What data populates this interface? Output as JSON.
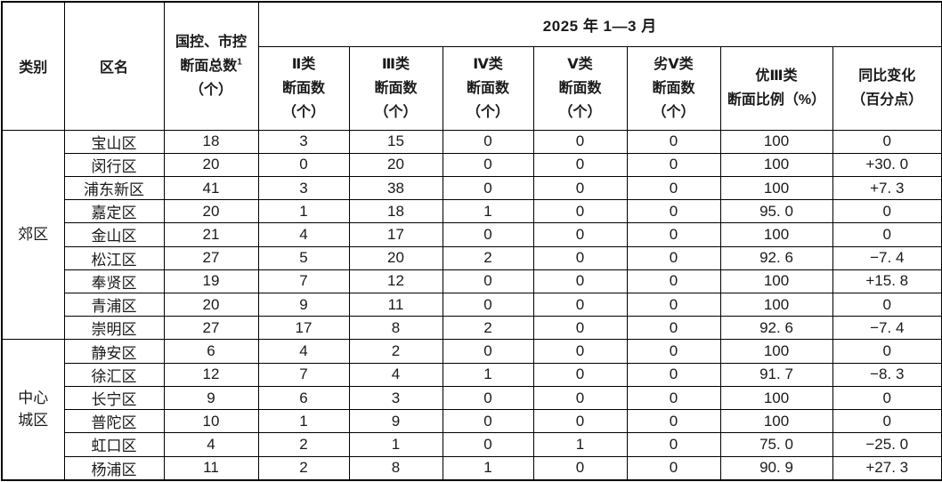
{
  "table": {
    "period": "2025 年 1—3 月",
    "header": {
      "category": "类别",
      "district": "区名",
      "total": {
        "line1": "国控、市控",
        "line2": "断面总数",
        "sup": "1",
        "line3": "（个）"
      },
      "subcols": [
        {
          "lines": [
            "Ⅱ类",
            "断面数",
            "（个）"
          ]
        },
        {
          "lines": [
            "Ⅲ类",
            "断面数",
            "（个）"
          ]
        },
        {
          "lines": [
            "Ⅳ类",
            "断面数",
            "（个）"
          ]
        },
        {
          "lines": [
            "Ⅴ类",
            "断面数",
            "（个）"
          ]
        },
        {
          "lines": [
            "劣Ⅴ类",
            "断面数",
            "（个）"
          ]
        },
        {
          "lines": [
            "优Ⅲ类",
            "断面比例（%）"
          ]
        },
        {
          "lines": [
            "同比变化",
            "（百分点）"
          ]
        }
      ]
    },
    "groups": [
      {
        "category": "郊区",
        "rows": [
          {
            "district": "宝山区",
            "values": [
              "18",
              "3",
              "15",
              "0",
              "0",
              "0",
              "100",
              "0"
            ]
          },
          {
            "district": "闵行区",
            "values": [
              "20",
              "0",
              "20",
              "0",
              "0",
              "0",
              "100",
              "+30. 0"
            ]
          },
          {
            "district": "浦东新区",
            "values": [
              "41",
              "3",
              "38",
              "0",
              "0",
              "0",
              "100",
              "+7. 3"
            ]
          },
          {
            "district": "嘉定区",
            "values": [
              "20",
              "1",
              "18",
              "1",
              "0",
              "0",
              "95. 0",
              "0"
            ]
          },
          {
            "district": "金山区",
            "values": [
              "21",
              "4",
              "17",
              "0",
              "0",
              "0",
              "100",
              "0"
            ]
          },
          {
            "district": "松江区",
            "values": [
              "27",
              "5",
              "20",
              "2",
              "0",
              "0",
              "92. 6",
              "−7. 4"
            ]
          },
          {
            "district": "奉贤区",
            "values": [
              "19",
              "7",
              "12",
              "0",
              "0",
              "0",
              "100",
              "+15. 8"
            ]
          },
          {
            "district": "青浦区",
            "values": [
              "20",
              "9",
              "11",
              "0",
              "0",
              "0",
              "100",
              "0"
            ]
          },
          {
            "district": "崇明区",
            "values": [
              "27",
              "17",
              "8",
              "2",
              "0",
              "0",
              "92. 6",
              "−7. 4"
            ]
          }
        ]
      },
      {
        "category": "中心城区",
        "rows": [
          {
            "district": "静安区",
            "values": [
              "6",
              "4",
              "2",
              "0",
              "0",
              "0",
              "100",
              "0"
            ]
          },
          {
            "district": "徐汇区",
            "values": [
              "12",
              "7",
              "4",
              "1",
              "0",
              "0",
              "91. 7",
              "−8. 3"
            ]
          },
          {
            "district": "长宁区",
            "values": [
              "9",
              "6",
              "3",
              "0",
              "0",
              "0",
              "100",
              "0"
            ]
          },
          {
            "district": "普陀区",
            "values": [
              "10",
              "1",
              "9",
              "0",
              "0",
              "0",
              "100",
              "0"
            ]
          },
          {
            "district": "虹口区",
            "values": [
              "4",
              "2",
              "1",
              "0",
              "1",
              "0",
              "75. 0",
              "−25. 0"
            ]
          },
          {
            "district": "杨浦区",
            "values": [
              "11",
              "2",
              "8",
              "1",
              "0",
              "0",
              "90. 9",
              "+27. 3"
            ]
          }
        ]
      }
    ],
    "colors": {
      "border": "#000000",
      "text": "#1a1a1a",
      "background": "#ffffff"
    }
  }
}
